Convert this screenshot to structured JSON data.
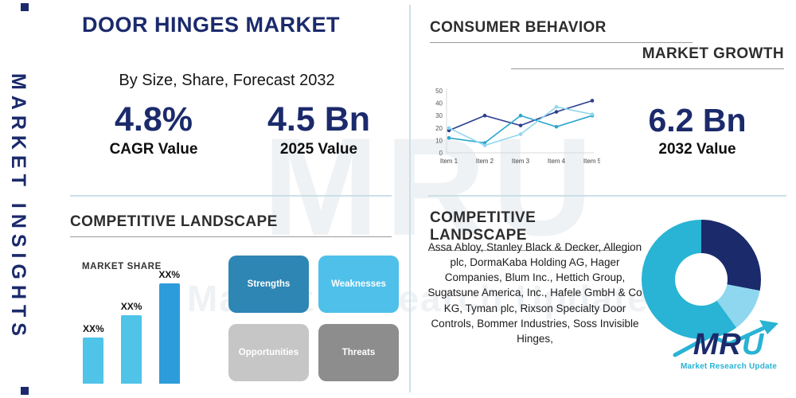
{
  "brand": {
    "navy": "#1b2a6b",
    "teal": "#29b3d4"
  },
  "watermark": {
    "line1": "MRU",
    "line2": "Market Research Update"
  },
  "sidebar": {
    "label": "MARKET INSIGHTS"
  },
  "header": {
    "title": "DOOR HINGES MARKET",
    "subtitle": "By Size, Share, Forecast 2032"
  },
  "stats": {
    "cagr": {
      "value": "4.8%",
      "label": "CAGR Value"
    },
    "y2025": {
      "value": "4.5 Bn",
      "label": "2025 Value"
    },
    "y2032": {
      "value": "6.2 Bn",
      "label": "2032 Value"
    }
  },
  "sections": {
    "consumer_behavior": "CONSUMER BEHAVIOR",
    "market_growth": "MARKET GROWTH",
    "competitive_left": "COMPETITIVE LANDSCAPE",
    "competitive_right": "COMPETITIVE LANDSCAPE",
    "market_share": "MARKET SHARE"
  },
  "swot": [
    {
      "label": "Strengths",
      "color": "#2e86b4"
    },
    {
      "label": "Weaknesses",
      "color": "#4fc0ea"
    },
    {
      "label": "Opportunities",
      "color": "#c6c6c6"
    },
    {
      "label": "Threats",
      "color": "#8d8d8d"
    }
  ],
  "companies": "Assa Abloy, Stanley Black & Decker, Allegion plc, DormaKaba Holding AG, Hager Companies, Blum Inc., Hettich Group, Sugatsune America, Inc., Hafele GmbH & Co KG, Tyman plc, Rixson Specialty Door Controls, Bommer Industries, Soss Invisible Hinges,",
  "logo": {
    "m": "M",
    "r": "R",
    "u": "U",
    "subtitle": "Market Research Update"
  },
  "chart_data": [
    {
      "type": "line",
      "title": "Consumer behavior / market growth trend",
      "x": [
        "Item 1",
        "Item 2",
        "Item 3",
        "Item 4",
        "Item 5"
      ],
      "series": [
        {
          "name": "series-navy",
          "color": "#2c3f8f",
          "values": [
            18,
            30,
            22,
            33,
            42
          ]
        },
        {
          "name": "series-teal",
          "color": "#2aa6cc",
          "values": [
            12,
            8,
            30,
            21,
            30
          ]
        },
        {
          "name": "series-light",
          "color": "#8fd6ef",
          "values": [
            20,
            6,
            15,
            37,
            31
          ]
        }
      ],
      "ylim": [
        0,
        50
      ],
      "yticks": [
        0,
        10,
        20,
        30,
        40,
        50
      ],
      "grid": false,
      "legend": "none"
    },
    {
      "type": "bar",
      "title": "MARKET SHARE",
      "categories": [
        "",
        "",
        ""
      ],
      "values": [
        32,
        48,
        70
      ],
      "labels": [
        "XX%",
        "XX%",
        "XX%"
      ],
      "colors": [
        "#4fc3e8",
        "#4fc3e8",
        "#2d9cdb"
      ],
      "ylim": [
        0,
        80
      ]
    },
    {
      "type": "pie",
      "title": "Competitive landscape donut",
      "segments": [
        {
          "name": "segment-navy",
          "value": 28,
          "color": "#1b2a6b"
        },
        {
          "name": "segment-light",
          "value": 12,
          "color": "#8fd6ef"
        },
        {
          "name": "segment-teal",
          "value": 60,
          "color": "#29b3d4"
        }
      ]
    }
  ]
}
